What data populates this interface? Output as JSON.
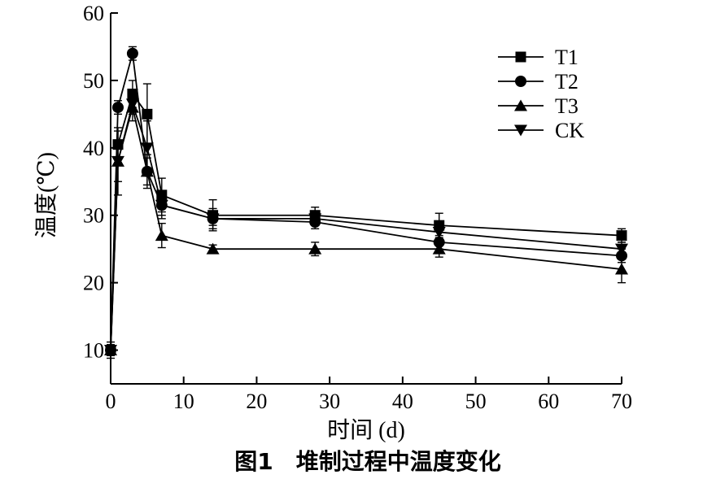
{
  "chart_data": {
    "type": "line",
    "caption": "图1　堆制过程中温度变化",
    "xlabel": "时间 (d)",
    "ylabel": "温度(℃)",
    "xlim": [
      0,
      70
    ],
    "ylim": [
      5,
      60
    ],
    "xticks": [
      0,
      10,
      20,
      30,
      40,
      50,
      60,
      70
    ],
    "yticks": [
      10,
      20,
      30,
      40,
      50,
      60
    ],
    "grid": false,
    "legend_position": "top-right",
    "x": [
      0,
      1,
      3,
      5,
      7,
      14,
      28,
      45,
      70
    ],
    "series": [
      {
        "name": "T1",
        "marker": "square",
        "values": [
          10,
          40.5,
          48,
          45,
          33,
          30,
          30,
          28.5,
          27
        ],
        "errors": [
          1.2,
          2,
          2,
          4.5,
          2.5,
          2.3,
          1.2,
          1.8,
          1
        ]
      },
      {
        "name": "T2",
        "marker": "circle",
        "values": [
          10,
          46,
          54,
          36.5,
          31.5,
          29.5,
          29,
          26,
          24
        ],
        "errors": [
          0.8,
          1,
          1,
          2,
          1.5,
          1,
          1,
          1,
          1
        ]
      },
      {
        "name": "T3",
        "marker": "triangle-up",
        "values": [
          10,
          38,
          46,
          36.5,
          27,
          25,
          25,
          25,
          22
        ],
        "errors": [
          0.8,
          5,
          2,
          2.5,
          1.8,
          0.6,
          1,
          1.2,
          2
        ]
      },
      {
        "name": "CK",
        "marker": "triangle-down",
        "values": [
          10,
          38,
          46.5,
          40,
          31.5,
          29.5,
          29.5,
          27.5,
          25
        ],
        "errors": [
          0.8,
          3,
          1.5,
          4,
          2,
          1.5,
          1,
          1,
          1
        ]
      }
    ]
  }
}
